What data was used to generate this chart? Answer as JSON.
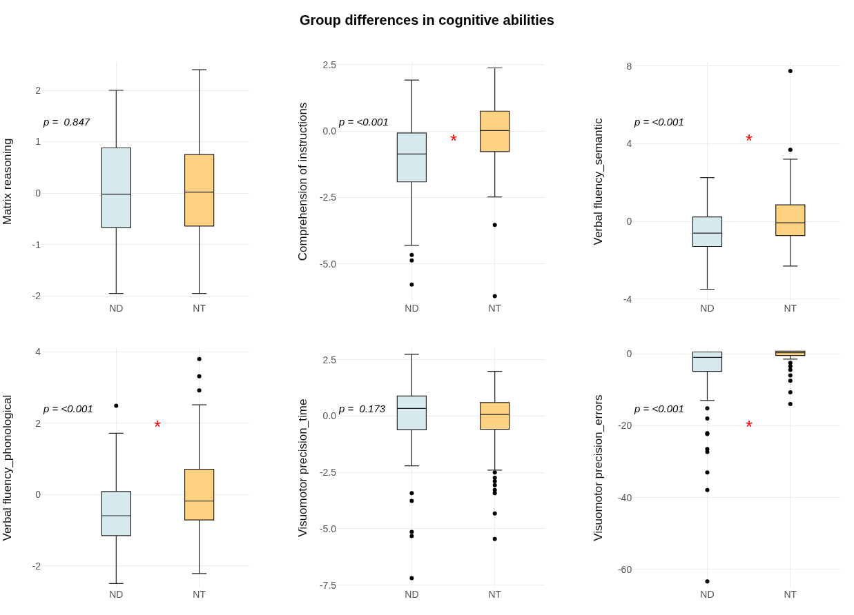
{
  "chart_data": [
    {
      "type": "box",
      "ylabel": "Matrix reasoning",
      "categories": [
        "ND",
        "NT"
      ],
      "colors": [
        "#d5e9ef",
        "#fdd283"
      ],
      "ylim": [
        -2.1,
        2.55
      ],
      "yticks": [
        -2,
        -1,
        0,
        1,
        2
      ],
      "grid": true,
      "boxes": [
        {
          "low": -1.95,
          "q1": -0.67,
          "median": -0.02,
          "q3": 0.88,
          "high": 2.0
        },
        {
          "low": -1.95,
          "q1": -0.64,
          "median": 0.02,
          "q3": 0.75,
          "high": 2.4
        }
      ],
      "annotations": [
        "p =  0.847"
      ]
    },
    {
      "type": "box",
      "title": "Group differences in cognitive abilities",
      "ylabel": "Comprehension of instructions",
      "categories": [
        "ND",
        "NT"
      ],
      "colors": [
        "#d5e9ef",
        "#fdd283"
      ],
      "ylim": [
        -6.4,
        2.6
      ],
      "yticks": [
        {
          "value": -5,
          "label": "-5.0"
        },
        {
          "value": -2.5,
          "label": "-2.5"
        },
        {
          "value": 0,
          "label": "0.0"
        },
        {
          "value": 2.5,
          "label": "2.5"
        }
      ],
      "grid": true,
      "boxes": [
        {
          "low": -4.3,
          "q1": -1.91,
          "median": -0.86,
          "q3": -0.07,
          "high": 1.92,
          "outliers": [
            -4.66,
            -4.87,
            -5.78
          ]
        },
        {
          "low": -2.48,
          "q1": -0.77,
          "median": 0.02,
          "q3": 0.75,
          "high": 2.38,
          "outliers": [
            -3.53,
            -6.21
          ]
        }
      ],
      "annotations": [
        "p = <0.001",
        "*"
      ]
    },
    {
      "type": "box",
      "ylabel": "Verbal fluency_semantic",
      "categories": [
        "ND",
        "NT"
      ],
      "colors": [
        "#d5e9ef",
        "#fdd283"
      ],
      "ylim": [
        -4.1,
        8.2
      ],
      "yticks": [
        -4,
        0,
        4,
        8
      ],
      "grid": true,
      "boxes": [
        {
          "low": -3.49,
          "q1": -1.29,
          "median": -0.6,
          "q3": 0.23,
          "high": 2.25
        },
        {
          "low": -2.3,
          "q1": -0.73,
          "median": -0.07,
          "q3": 0.85,
          "high": 3.2,
          "outliers": [
            3.69,
            7.74
          ]
        }
      ],
      "annotations": [
        "p = <0.001",
        "*"
      ]
    },
    {
      "type": "box",
      "ylabel": "Verbal fluency_phonological",
      "categories": [
        "ND",
        "NT"
      ],
      "colors": [
        "#d5e9ef",
        "#fdd283"
      ],
      "ylim": [
        -2.6,
        4.1
      ],
      "yticks": [
        -2,
        0,
        2,
        4
      ],
      "grid": true,
      "boxes": [
        {
          "low": -2.49,
          "q1": -1.15,
          "median": -0.59,
          "q3": 0.09,
          "high": 1.72,
          "outliers": [
            2.49
          ]
        },
        {
          "low": -2.21,
          "q1": -0.71,
          "median": -0.18,
          "q3": 0.71,
          "high": 2.52,
          "outliers": [
            2.92,
            3.32,
            3.8
          ]
        }
      ],
      "annotations": [
        "p = <0.001",
        "*"
      ]
    },
    {
      "type": "box",
      "ylabel": "Visuomotor precision_time",
      "categories": [
        "ND",
        "NT"
      ],
      "colors": [
        "#d5e9ef",
        "#fdd283"
      ],
      "ylim": [
        -7.6,
        3.0
      ],
      "yticks": [
        {
          "value": -7.5,
          "label": "-7.5"
        },
        {
          "value": -5,
          "label": "-5.0"
        },
        {
          "value": -2.5,
          "label": "-2.5"
        },
        {
          "value": 0,
          "label": "0.0"
        },
        {
          "value": 2.5,
          "label": "2.5"
        }
      ],
      "grid": true,
      "boxes": [
        {
          "low": -2.21,
          "q1": -0.61,
          "median": 0.34,
          "q3": 0.89,
          "high": 2.74,
          "outliers": [
            -3.42,
            -3.76,
            -5.14,
            -5.32,
            -7.19
          ]
        },
        {
          "low": -2.4,
          "q1": -0.59,
          "median": 0.07,
          "q3": 0.6,
          "high": 1.98,
          "outliers": [
            -2.5,
            -2.74,
            -2.89,
            -3.07,
            -3.28,
            -3.42,
            -4.32,
            -5.45
          ]
        }
      ],
      "annotations": [
        "p =  0.173"
      ]
    },
    {
      "type": "box",
      "ylabel": "Visuomotor precision_errors",
      "categories": [
        "ND",
        "NT"
      ],
      "colors": [
        "#d5e9ef",
        "#fdd283"
      ],
      "ylim": [
        -65,
        1.5
      ],
      "yticks": [
        -60,
        -40,
        -20,
        0
      ],
      "grid": true,
      "boxes": [
        {
          "low": -13,
          "q1": -4.9,
          "median": -1.0,
          "q3": 0.5,
          "high": 0.5,
          "outliers": [
            -15.2,
            -18,
            -22.1,
            -22.3,
            -26.5,
            -27.3,
            -33,
            -37.9,
            -63.3
          ]
        },
        {
          "low": -1.5,
          "q1": -0.5,
          "median": 0.3,
          "q3": 0.7,
          "high": 0.7,
          "outliers": [
            -2.5,
            -3.5,
            -4.5,
            -6,
            -7.5,
            -10.7,
            -14
          ]
        }
      ],
      "annotations": [
        "p = <0.001",
        "*"
      ]
    }
  ]
}
